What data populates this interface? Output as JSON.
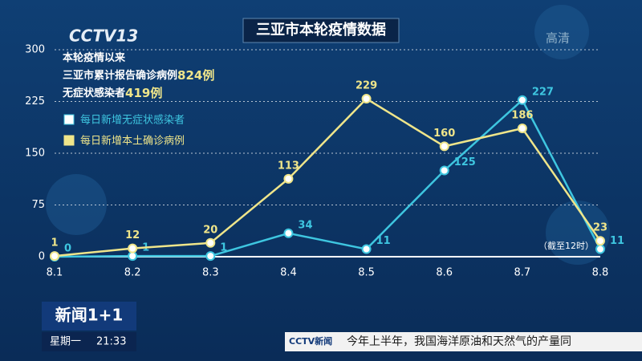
{
  "chart_data": {
    "type": "line",
    "title": "三亚市本轮疫情数据",
    "notes": [
      {
        "text": "本轮疫情以来"
      },
      {
        "text": "三亚市累计报告确诊病例",
        "highlight": "824例"
      },
      {
        "text": "无症状感染者",
        "highlight": "419例"
      }
    ],
    "footnote": "（截至12时）",
    "categories": [
      "8.1",
      "8.2",
      "8.3",
      "8.4",
      "8.5",
      "8.6",
      "8.7",
      "8.8"
    ],
    "series": [
      {
        "name": "每日新增无症状感染者",
        "color": "#3ec6e0",
        "values": [
          0,
          1,
          1,
          34,
          11,
          125,
          227,
          11
        ]
      },
      {
        "name": "每日新增本土确诊病例",
        "color": "#efe58a",
        "values": [
          1,
          12,
          20,
          113,
          229,
          160,
          186,
          23
        ]
      }
    ],
    "ylim": [
      0,
      300
    ],
    "yticks": [
      0,
      75,
      150,
      225,
      300
    ],
    "grid": true
  },
  "overlay": {
    "channel_logo": "CCTV13",
    "hd": "高清",
    "program": "新闻1+1",
    "weekday": "星期一",
    "time": "21:33",
    "ticker_logo": "CCTV新闻",
    "ticker": "今年上半年，我国海洋原油和天然气的产量同"
  }
}
